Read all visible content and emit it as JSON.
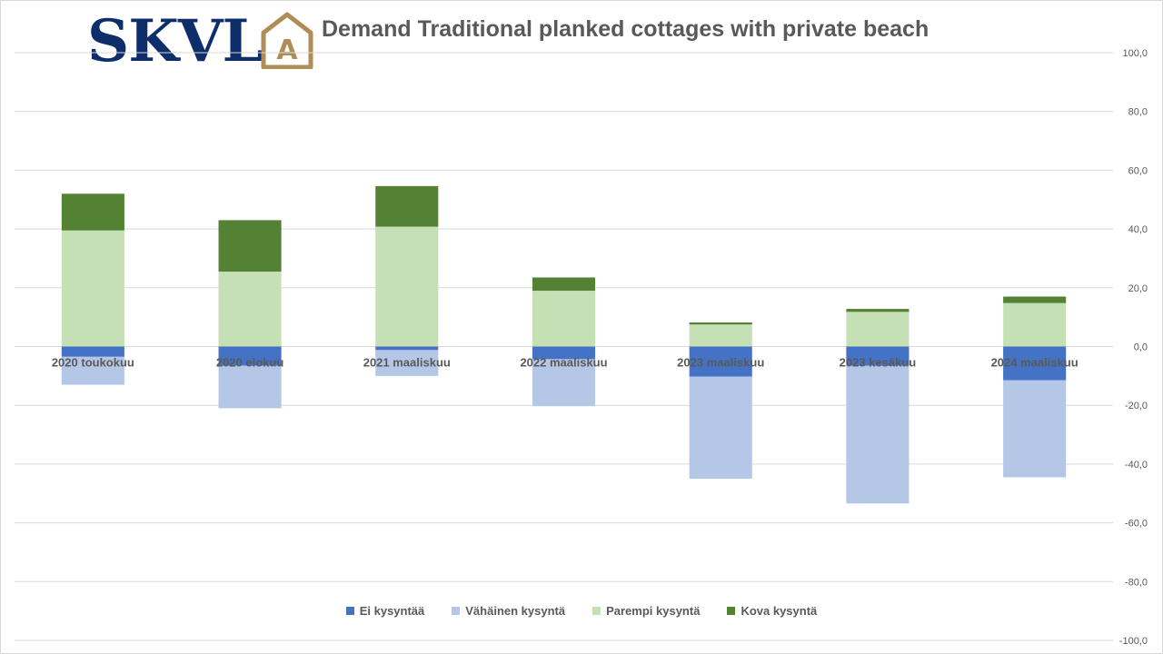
{
  "logo": {
    "text": "SKVL",
    "mark": "A"
  },
  "chart_data": {
    "type": "bar",
    "stacked": true,
    "title": "Demand Traditional planked cottages with private beach",
    "categories": [
      "2020 toukokuu",
      "2020 elokuu",
      "2021 maaliskuu",
      "2022 maaliskuu",
      "2023 maaliskuu",
      "2023 kesäkuu",
      "2024 maaliskuu"
    ],
    "series": [
      {
        "name": "Ei kysyntää",
        "color": "#4472c4",
        "values": [
          -3.5,
          -6.5,
          -1.2,
          -4.3,
          -10.2,
          -6.5,
          -11.5
        ]
      },
      {
        "name": "Vähäinen kysyntä",
        "color": "#b4c7e7",
        "values": [
          -9.5,
          -14.5,
          -8.8,
          -16.0,
          -34.8,
          -46.9,
          -33.0
        ]
      },
      {
        "name": "Parempi kysyntä",
        "color": "#c5e0b4",
        "values": [
          39.5,
          25.5,
          40.8,
          19.0,
          7.5,
          11.8,
          14.8
        ]
      },
      {
        "name": "Kova kysyntä",
        "color": "#548235",
        "values": [
          12.5,
          17.5,
          13.8,
          4.5,
          0.7,
          1.0,
          2.2
        ]
      }
    ],
    "ylim": [
      -100,
      100
    ],
    "yticks": [
      "100,0",
      "80,0",
      "60,0",
      "40,0",
      "20,0",
      "0,0",
      "-20,0",
      "-40,0",
      "-60,0",
      "-80,0",
      "-100,0"
    ],
    "y_axis_side": "right",
    "grid": true,
    "legend_position": "bottom"
  }
}
